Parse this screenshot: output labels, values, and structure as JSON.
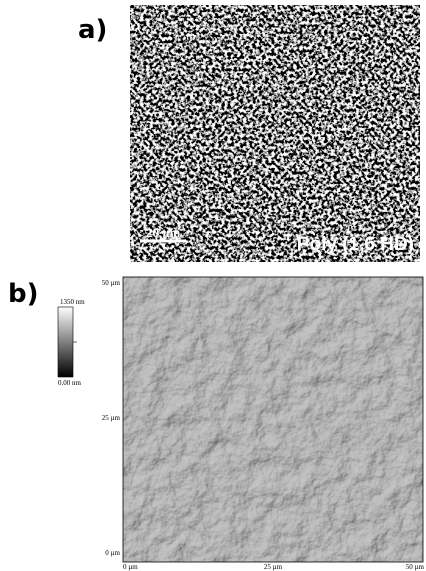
{
  "panel_a": {
    "label": "a)",
    "scale_bar": "20 µm",
    "sample": "Poly (1,6 HD)"
  },
  "panel_b": {
    "label": "b)",
    "colorbar": {
      "max": "1350 nm",
      "min": "0.00 nm"
    },
    "y_labels": [
      "50 µm",
      "25 µm",
      "0 µm"
    ],
    "x_labels": [
      "0 µm",
      "25 µm",
      "50 µm"
    ]
  }
}
